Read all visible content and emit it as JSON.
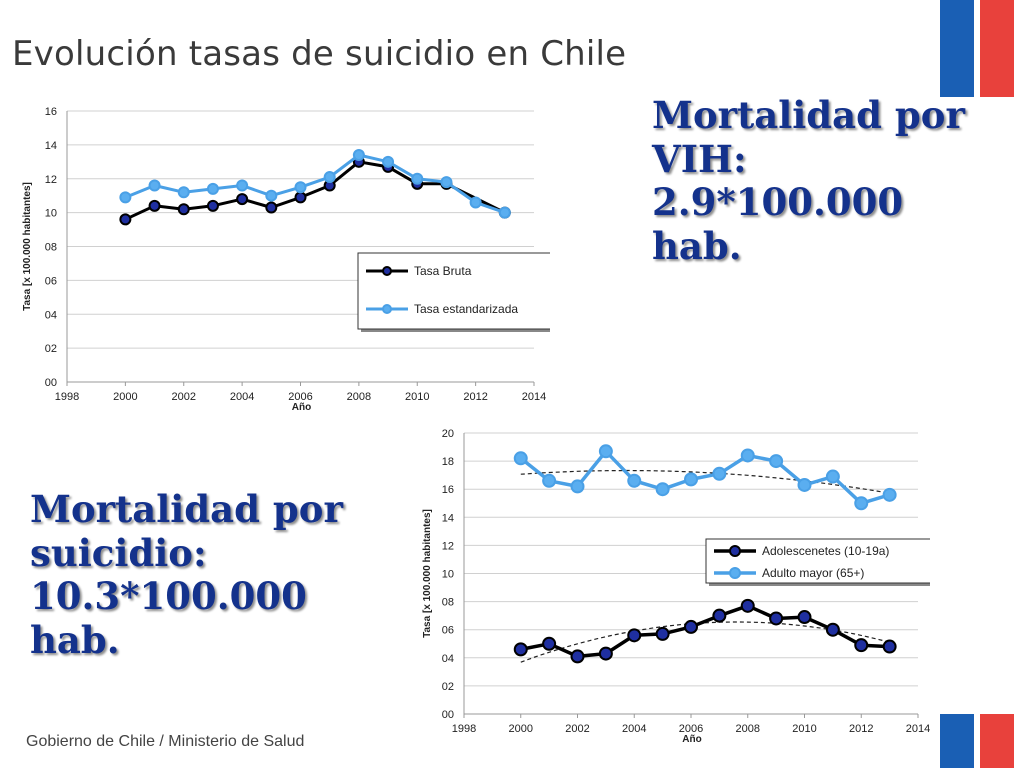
{
  "slide": {
    "title": "Evolución tasas de suicidio en Chile",
    "footer": "Gobierno de Chile / Ministerio de Salud",
    "callout_vih": [
      "Mortalidad por",
      "VIH:",
      "2.9*100.000",
      "hab."
    ],
    "callout_suicidio": [
      "Mortalidad por",
      "suicidio:",
      "10.3*100.000",
      "hab."
    ],
    "colors": {
      "flag_blue": "#1a5fb4",
      "flag_red": "#e8413c",
      "callout_text": "#14328c"
    }
  },
  "chart_data": [
    {
      "type": "line",
      "title": "",
      "xlabel": "Año",
      "ylabel": "Tasa [x 100.000 habitantes]",
      "xlim": [
        1998,
        2014
      ],
      "ylim": [
        0,
        16
      ],
      "x_ticks": [
        "1998",
        "2000",
        "2002",
        "2004",
        "2006",
        "2008",
        "2010",
        "2012",
        "2014"
      ],
      "y_ticks": [
        "00",
        "02",
        "04",
        "06",
        "08",
        "10",
        "12",
        "14",
        "16"
      ],
      "grid": "horizontal",
      "legend": "center-right",
      "x": [
        2000,
        2001,
        2002,
        2003,
        2004,
        2005,
        2006,
        2007,
        2008,
        2009,
        2010,
        2011,
        2012,
        2013
      ],
      "series": [
        {
          "name": "Tasa Bruta",
          "color": "#000000",
          "values": [
            9.6,
            10.4,
            10.2,
            10.4,
            10.8,
            10.3,
            10.9,
            11.6,
            13.0,
            12.7,
            11.7,
            11.7,
            null,
            10.0
          ]
        },
        {
          "name": "Tasa estandarizada",
          "color": "#4aa0e6",
          "values": [
            10.9,
            11.6,
            11.2,
            11.4,
            11.6,
            11.0,
            11.5,
            12.1,
            13.4,
            13.0,
            12.0,
            11.8,
            10.6,
            10.0
          ]
        }
      ]
    },
    {
      "type": "line",
      "title": "",
      "xlabel": "Año",
      "ylabel": "Tasa [x 100.000 habitantes]",
      "xlim": [
        1998,
        2014
      ],
      "ylim": [
        0,
        20
      ],
      "x_ticks": [
        "1998",
        "2000",
        "2002",
        "2004",
        "2006",
        "2008",
        "2010",
        "2012",
        "2014"
      ],
      "y_ticks": [
        "00",
        "02",
        "04",
        "06",
        "08",
        "10",
        "12",
        "14",
        "16",
        "18",
        "20"
      ],
      "grid": "horizontal",
      "legend": "center-right",
      "x": [
        2000,
        2001,
        2002,
        2003,
        2004,
        2005,
        2006,
        2007,
        2008,
        2009,
        2010,
        2011,
        2012,
        2013
      ],
      "series": [
        {
          "name": "Adolescenetes (10-19a)",
          "color": "#000000",
          "values": [
            4.6,
            5.0,
            4.1,
            4.3,
            5.6,
            5.7,
            6.2,
            7.0,
            7.7,
            6.8,
            6.9,
            6.0,
            4.9,
            4.8
          ]
        },
        {
          "name": "Adulto mayor (65+)",
          "color": "#4aa0e6",
          "values": [
            18.2,
            16.6,
            16.2,
            18.7,
            16.6,
            16.0,
            16.7,
            17.1,
            18.4,
            18.0,
            16.3,
            16.9,
            15.0,
            15.6
          ]
        }
      ],
      "trendlines": true
    }
  ]
}
